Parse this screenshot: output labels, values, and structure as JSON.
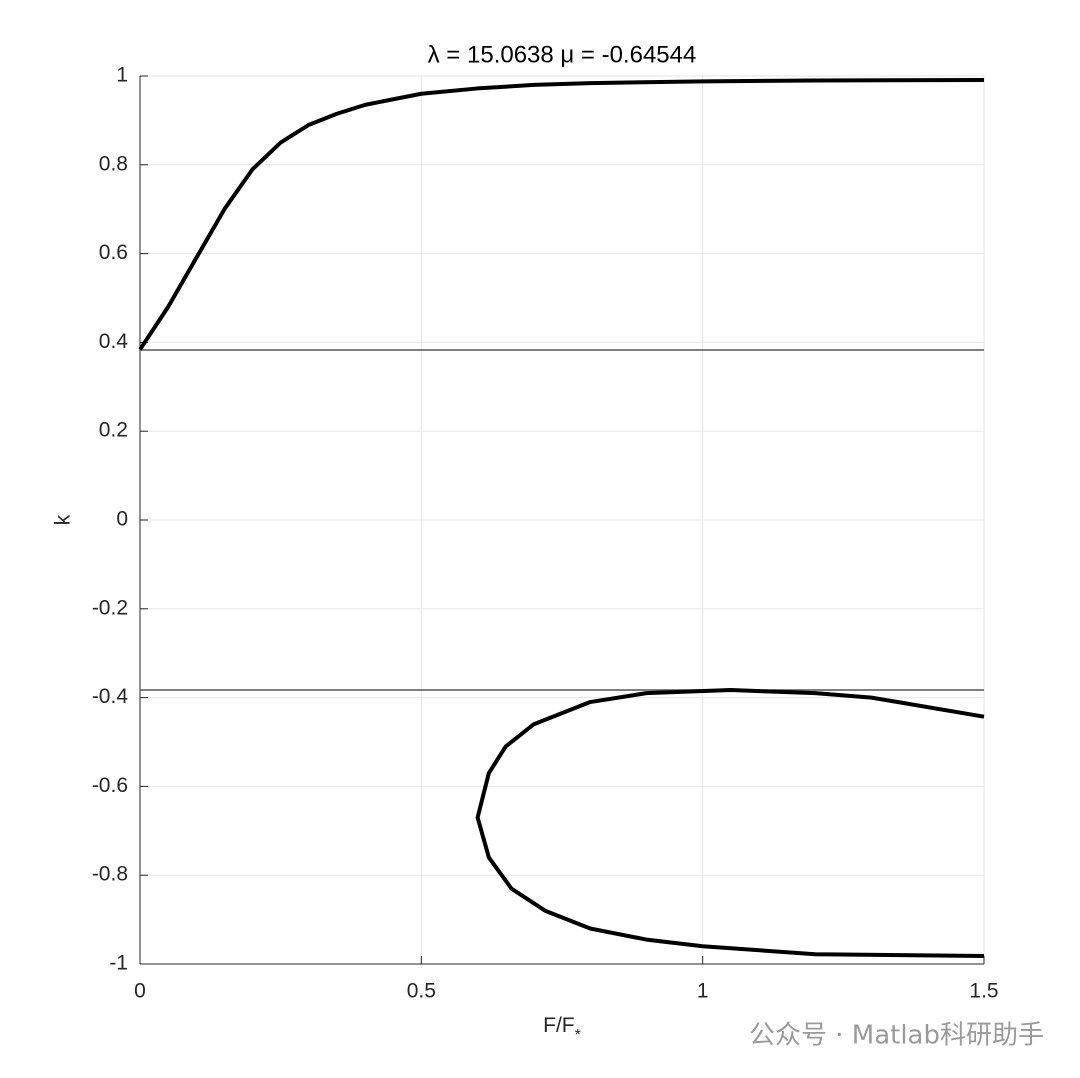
{
  "chart_data": {
    "type": "line",
    "title": "λ =  15.0638  μ =  -0.64544",
    "x_label": "F/F",
    "x_label_subscript": "*",
    "y_label": "k",
    "watermark": "公众号 · Matlab科研助手",
    "xlim": [
      0,
      1.5
    ],
    "xticks": [
      0,
      0.5,
      1,
      1.5
    ],
    "ylim": [
      -1,
      1
    ],
    "yticks": [
      -1,
      -0.8,
      -0.6,
      -0.4,
      -0.2,
      0,
      0.2,
      0.4,
      0.6,
      0.8,
      1
    ],
    "grid": true,
    "hlines": [
      0.383,
      -0.383
    ],
    "hline_color": "#555555",
    "series": [
      {
        "color": "#000000",
        "x": [
          0,
          0.05,
          0.1,
          0.15,
          0.2,
          0.25,
          0.3,
          0.35,
          0.4,
          0.5,
          0.6,
          0.7,
          0.8,
          1.0,
          1.2,
          1.5
        ],
        "values": [
          0.384,
          0.48,
          0.59,
          0.7,
          0.79,
          0.85,
          0.89,
          0.915,
          0.935,
          0.96,
          0.972,
          0.98,
          0.984,
          0.988,
          0.99,
          0.991
        ]
      },
      {
        "color": "#000000",
        "x": [
          1.5,
          1.3,
          1.2,
          1.05,
          0.9,
          0.8,
          0.7,
          0.65,
          0.62,
          0.6,
          0.62,
          0.66,
          0.72,
          0.8,
          0.9,
          1.0,
          1.2,
          1.5
        ],
        "values": [
          -0.443,
          -0.4,
          -0.39,
          -0.383,
          -0.39,
          -0.41,
          -0.46,
          -0.51,
          -0.57,
          -0.67,
          -0.76,
          -0.83,
          -0.88,
          -0.92,
          -0.945,
          -0.96,
          -0.978,
          -0.982
        ]
      }
    ]
  }
}
